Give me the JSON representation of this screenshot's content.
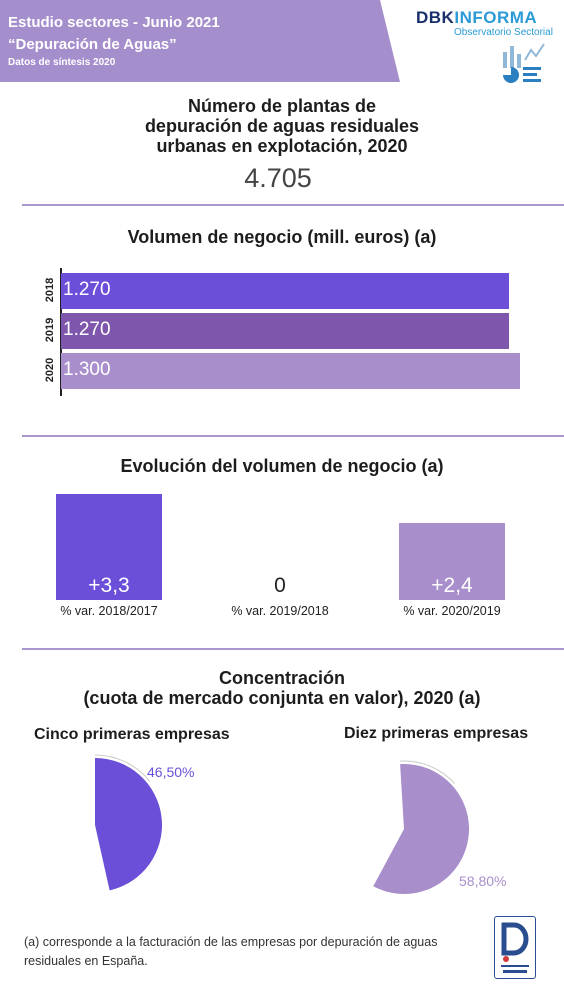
{
  "header": {
    "line1": "Estudio sectores - Junio 2021",
    "line2": "“Depuración de Aguas”",
    "line3": "Datos de síntesis 2020"
  },
  "logo": {
    "brand_part1": "DBK",
    "brand_part2": "INFORMA",
    "subtitle": "Observatorio Sectorial",
    "icon": "bar-pie-chart-icon",
    "badge_icon": "d-logo-badge-icon"
  },
  "plants": {
    "title_lines": [
      "Número de plantas de",
      "depuración de aguas residuales",
      "urbanas en explotación, 2020"
    ],
    "value": "4.705"
  },
  "colors": {
    "banner": "#a58ecc",
    "purple_bright": "#6b4fd9",
    "purple_dark": "#7e57ad",
    "purple_light": "#a88fcc",
    "divider": "#a897cc"
  },
  "chart_data": [
    {
      "type": "bar",
      "orientation": "horizontal",
      "title": "Volumen de negocio (mill. euros) (a)",
      "categories": [
        "2018",
        "2019",
        "2020"
      ],
      "values": [
        1270,
        1270,
        1300
      ],
      "labels": [
        "1.270",
        "1.270",
        "1.300"
      ],
      "colors": [
        "#6b4fd9",
        "#7e57ad",
        "#a88fcc"
      ]
    },
    {
      "type": "bar",
      "title": "Evolución del volumen de negocio (a)",
      "categories": [
        "% var. 2018/2017",
        "% var. 2019/2018",
        "% var. 2020/2019"
      ],
      "values": [
        3.3,
        0,
        2.4
      ],
      "labels": [
        "+3,3",
        "0",
        "+2,4"
      ],
      "colors": [
        "#6b4fd9",
        "#7e57ad",
        "#a88fcc"
      ]
    },
    {
      "type": "pie",
      "title": "Concentración",
      "subtitle": "(cuota de mercado conjunta en valor), 2020 (a)",
      "charts": [
        {
          "name": "Cinco primeras empresas",
          "value": 46.5,
          "label": "46,50%",
          "color": "#6b4fd9"
        },
        {
          "name": "Diez primeras empresas",
          "value": 58.8,
          "label": "58,80%",
          "color": "#a88fcc"
        }
      ]
    }
  ],
  "footnote": "(a) corresponde a la facturación de las empresas por depuración de aguas residuales en España."
}
